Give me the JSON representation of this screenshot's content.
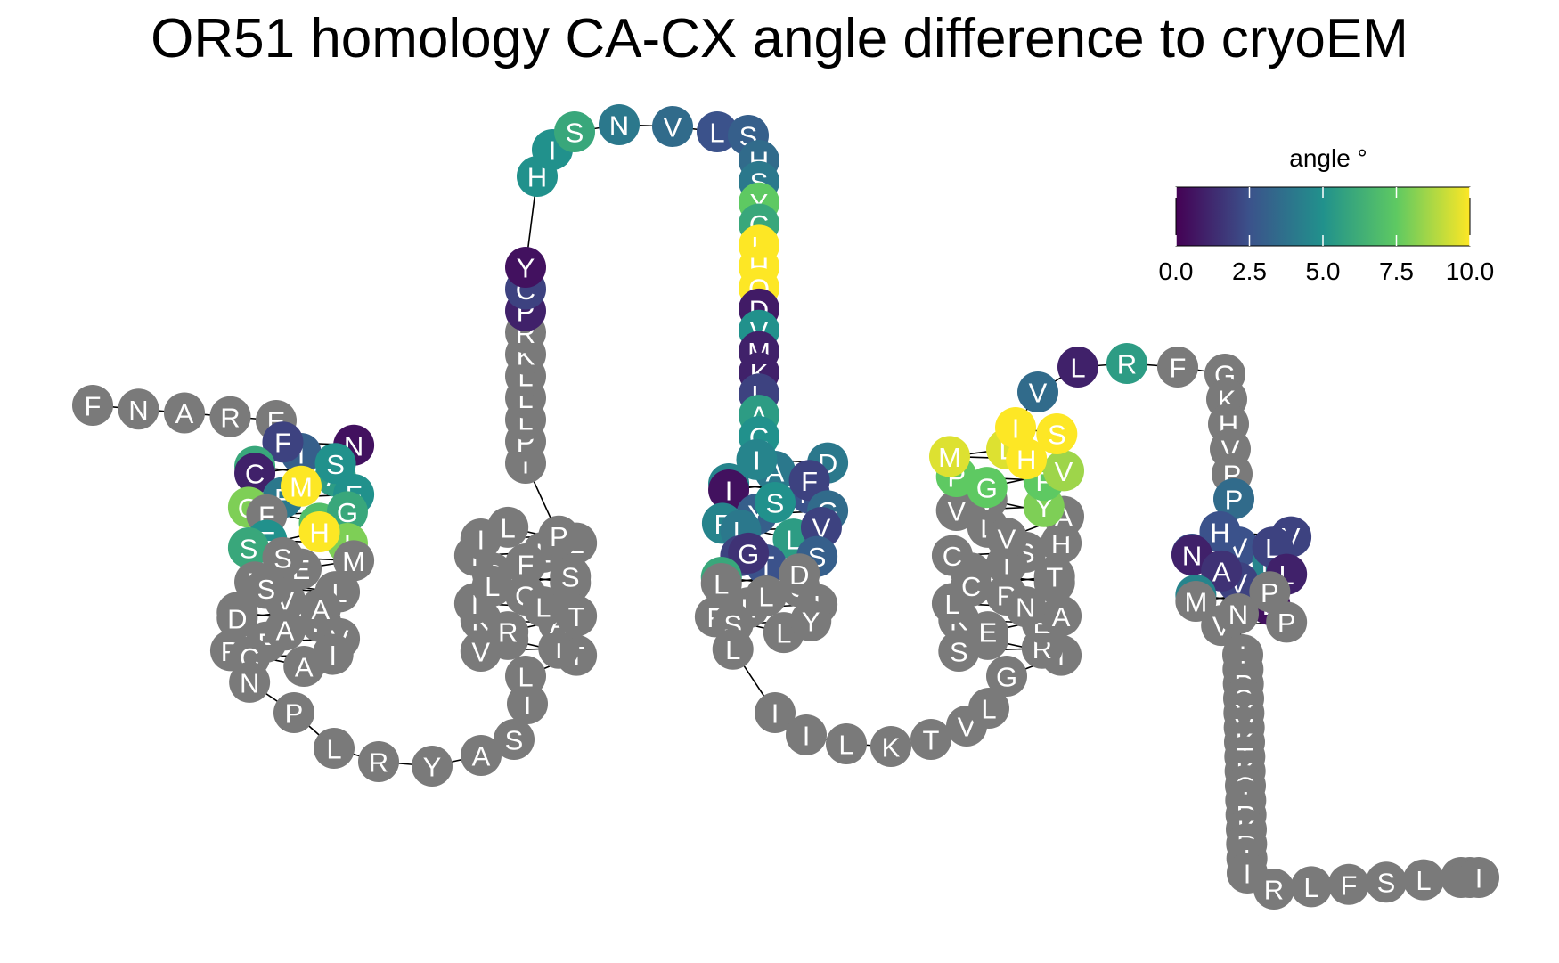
{
  "title": "OR51 homology CA-CX angle difference to cryoEM",
  "legend": {
    "title": "angle °",
    "ticks": [
      "0.0",
      "2.5",
      "5.0",
      "7.5",
      "10.0"
    ],
    "range": [
      0,
      10
    ],
    "colors": [
      "#440154",
      "#3b528b",
      "#21918c",
      "#5ec962",
      "#fde725"
    ]
  },
  "no_data_color": "#7a7a7a",
  "chart_data": {
    "type": "snake_plot",
    "color_scale": "viridis",
    "value_label": "angle °",
    "vmin": 0,
    "vmax": 10,
    "residues": [
      {
        "aa": "F",
        "v": null
      },
      {
        "aa": "N",
        "v": null
      },
      {
        "aa": "A",
        "v": null
      },
      {
        "aa": "R",
        "v": null
      },
      {
        "aa": "E",
        "v": null
      },
      {
        "aa": "I",
        "v": 3.0
      },
      {
        "aa": "N",
        "v": 0.5
      },
      {
        "aa": "F",
        "v": 2.0
      },
      {
        "aa": "A",
        "v": 6.0
      },
      {
        "aa": "A",
        "v": 5.5
      },
      {
        "aa": "S",
        "v": 5.0
      },
      {
        "aa": "C",
        "v": 1.0
      },
      {
        "aa": "F",
        "v": 4.0
      },
      {
        "aa": "F",
        "v": 5.0
      },
      {
        "aa": "M",
        "v": 10.0
      },
      {
        "aa": "Q",
        "v": 8.0
      },
      {
        "aa": "F",
        "v": 7.0
      },
      {
        "aa": "G",
        "v": 6.0
      },
      {
        "aa": "F",
        "v": null
      },
      {
        "aa": "F",
        "v": 5.0
      },
      {
        "aa": "I",
        "v": 8.0
      },
      {
        "aa": "H",
        "v": 10.0
      },
      {
        "aa": "S",
        "v": 6.0
      },
      {
        "aa": "E",
        "v": null
      },
      {
        "aa": "M",
        "v": null
      },
      {
        "aa": "S",
        "v": null
      },
      {
        "aa": "L",
        "v": null
      },
      {
        "aa": "A",
        "v": null
      },
      {
        "aa": "V",
        "v": null
      },
      {
        "aa": "L",
        "v": null
      },
      {
        "aa": "S",
        "v": null
      },
      {
        "aa": "M",
        "v": null
      },
      {
        "aa": "F",
        "v": null
      },
      {
        "aa": "A",
        "v": null
      },
      {
        "aa": "D",
        "v": null
      },
      {
        "aa": "F",
        "v": null
      },
      {
        "aa": "V",
        "v": null
      },
      {
        "aa": "A",
        "v": null
      },
      {
        "aa": "R",
        "v": null
      },
      {
        "aa": "A",
        "v": null
      },
      {
        "aa": "I",
        "v": null
      },
      {
        "aa": "C",
        "v": null
      },
      {
        "aa": "N",
        "v": null
      },
      {
        "aa": "P",
        "v": null
      },
      {
        "aa": "L",
        "v": null
      },
      {
        "aa": "R",
        "v": null
      },
      {
        "aa": "Y",
        "v": null
      },
      {
        "aa": "A",
        "v": null
      },
      {
        "aa": "S",
        "v": null
      },
      {
        "aa": "I",
        "v": null
      },
      {
        "aa": "L",
        "v": null
      },
      {
        "aa": "T",
        "v": null
      },
      {
        "aa": "N",
        "v": null
      },
      {
        "aa": "V",
        "v": null
      },
      {
        "aa": "I",
        "v": null
      },
      {
        "aa": "A",
        "v": null
      },
      {
        "aa": "K",
        "v": null
      },
      {
        "aa": "R",
        "v": null
      },
      {
        "aa": "T",
        "v": null
      },
      {
        "aa": "G",
        "v": null
      },
      {
        "aa": "I",
        "v": null
      },
      {
        "aa": "L",
        "v": null
      },
      {
        "aa": "A",
        "v": null
      },
      {
        "aa": "R",
        "v": null
      },
      {
        "aa": "L",
        "v": null
      },
      {
        "aa": "S",
        "v": null
      },
      {
        "aa": "L",
        "v": null
      },
      {
        "aa": "T",
        "v": null
      },
      {
        "aa": "F",
        "v": null
      },
      {
        "aa": "L",
        "v": null
      },
      {
        "aa": "L",
        "v": null
      },
      {
        "aa": "I",
        "v": null
      },
      {
        "aa": "P",
        "v": null
      },
      {
        "aa": "I",
        "v": null
      },
      {
        "aa": "P",
        "v": null
      },
      {
        "aa": "L",
        "v": null
      },
      {
        "aa": "L",
        "v": null
      },
      {
        "aa": "L",
        "v": null
      },
      {
        "aa": "K",
        "v": null
      },
      {
        "aa": "R",
        "v": null
      },
      {
        "aa": "P",
        "v": 1.0
      },
      {
        "aa": "C",
        "v": 2.0
      },
      {
        "aa": "Y",
        "v": 0.5
      },
      {
        "aa": "H",
        "v": 5.0
      },
      {
        "aa": "I",
        "v": 5.0
      },
      {
        "aa": "S",
        "v": 6.0
      },
      {
        "aa": "N",
        "v": 4.0
      },
      {
        "aa": "V",
        "v": 3.5
      },
      {
        "aa": "L",
        "v": 2.5
      },
      {
        "aa": "S",
        "v": 3.0
      },
      {
        "aa": "H",
        "v": 3.5
      },
      {
        "aa": "S",
        "v": 4.0
      },
      {
        "aa": "Y",
        "v": 7.5
      },
      {
        "aa": "C",
        "v": 6.0
      },
      {
        "aa": "L",
        "v": 10.0
      },
      {
        "aa": "H",
        "v": 10.0
      },
      {
        "aa": "Q",
        "v": 10.0
      },
      {
        "aa": "D",
        "v": 0.8
      },
      {
        "aa": "V",
        "v": 5.0
      },
      {
        "aa": "M",
        "v": 1.0
      },
      {
        "aa": "K",
        "v": 1.0
      },
      {
        "aa": "L",
        "v": 2.0
      },
      {
        "aa": "A",
        "v": 5.5
      },
      {
        "aa": "C",
        "v": 5.0
      },
      {
        "aa": "A",
        "v": 4.0
      },
      {
        "aa": "D",
        "v": 4.0
      },
      {
        "aa": "I",
        "v": 4.5
      },
      {
        "aa": "R",
        "v": 4.5
      },
      {
        "aa": "N",
        "v": 2.5
      },
      {
        "aa": "F",
        "v": 2.0
      },
      {
        "aa": "I",
        "v": 0.5
      },
      {
        "aa": "Y",
        "v": 3.0
      },
      {
        "aa": "G",
        "v": 3.5
      },
      {
        "aa": "S",
        "v": 5.0
      },
      {
        "aa": "F",
        "v": 4.5
      },
      {
        "aa": "L",
        "v": 5.5
      },
      {
        "aa": "V",
        "v": 2.0
      },
      {
        "aa": "L",
        "v": 4.0
      },
      {
        "aa": "V",
        "v": 2.0
      },
      {
        "aa": "T",
        "v": 2.5
      },
      {
        "aa": "S",
        "v": 3.0
      },
      {
        "aa": "G",
        "v": 1.5
      },
      {
        "aa": "M",
        "v": 6.0
      },
      {
        "aa": "S",
        "v": null
      },
      {
        "aa": "D",
        "v": null
      },
      {
        "aa": "L",
        "v": null
      },
      {
        "aa": "L",
        "v": null
      },
      {
        "aa": "I",
        "v": null
      },
      {
        "aa": "L",
        "v": null
      },
      {
        "aa": "F",
        "v": null
      },
      {
        "aa": "L",
        "v": null
      },
      {
        "aa": "Y",
        "v": null
      },
      {
        "aa": "S",
        "v": null
      },
      {
        "aa": "L",
        "v": null
      },
      {
        "aa": "I",
        "v": null
      },
      {
        "aa": "I",
        "v": null
      },
      {
        "aa": "L",
        "v": null
      },
      {
        "aa": "K",
        "v": null
      },
      {
        "aa": "T",
        "v": null
      },
      {
        "aa": "V",
        "v": null
      },
      {
        "aa": "L",
        "v": null
      },
      {
        "aa": "G",
        "v": null
      },
      {
        "aa": "I",
        "v": null
      },
      {
        "aa": "A",
        "v": null
      },
      {
        "aa": "S",
        "v": null
      },
      {
        "aa": "R",
        "v": null
      },
      {
        "aa": "E",
        "v": null
      },
      {
        "aa": "K",
        "v": null
      },
      {
        "aa": "E",
        "v": null
      },
      {
        "aa": "A",
        "v": null
      },
      {
        "aa": "R",
        "v": null
      },
      {
        "aa": "L",
        "v": null
      },
      {
        "aa": "N",
        "v": null
      },
      {
        "aa": "V",
        "v": null
      },
      {
        "aa": "L",
        "v": null
      },
      {
        "aa": "C",
        "v": null
      },
      {
        "aa": "T",
        "v": null
      },
      {
        "aa": "S",
        "v": null
      },
      {
        "aa": "C",
        "v": null
      },
      {
        "aa": "I",
        "v": null
      },
      {
        "aa": "H",
        "v": null
      },
      {
        "aa": "L",
        "v": null
      },
      {
        "aa": "V",
        "v": null
      },
      {
        "aa": "A",
        "v": null
      },
      {
        "aa": "V",
        "v": null
      },
      {
        "aa": "V",
        "v": null
      },
      {
        "aa": "Y",
        "v": 8.0
      },
      {
        "aa": "F",
        "v": 7.5
      },
      {
        "aa": "P",
        "v": 7.5
      },
      {
        "aa": "G",
        "v": 7.5
      },
      {
        "aa": "V",
        "v": 8.5
      },
      {
        "aa": "L",
        "v": 9.5
      },
      {
        "aa": "M",
        "v": 9.5
      },
      {
        "aa": "H",
        "v": 10.0
      },
      {
        "aa": "S",
        "v": 10.0
      },
      {
        "aa": "I",
        "v": 10.0
      },
      {
        "aa": "V",
        "v": 3.5
      },
      {
        "aa": "L",
        "v": 1.0
      },
      {
        "aa": "R",
        "v": 5.5
      },
      {
        "aa": "F",
        "v": null
      },
      {
        "aa": "G",
        "v": null
      },
      {
        "aa": "K",
        "v": null
      },
      {
        "aa": "H",
        "v": null
      },
      {
        "aa": "V",
        "v": null
      },
      {
        "aa": "P",
        "v": null
      },
      {
        "aa": "P",
        "v": 3.5
      },
      {
        "aa": "V",
        "v": 2.5
      },
      {
        "aa": "V",
        "v": 2.0
      },
      {
        "aa": "H",
        "v": 2.5
      },
      {
        "aa": "V",
        "v": 2.5
      },
      {
        "aa": "M",
        "v": 4.5
      },
      {
        "aa": "L",
        "v": 2.0
      },
      {
        "aa": "N",
        "v": 1.0
      },
      {
        "aa": "V",
        "v": 2.0
      },
      {
        "aa": "L",
        "v": 1.0
      },
      {
        "aa": "A",
        "v": 1.5
      },
      {
        "aa": "Y",
        "v": 4.5
      },
      {
        "aa": "L",
        "v": 0.5
      },
      {
        "aa": "P",
        "v": null
      },
      {
        "aa": "M",
        "v": null
      },
      {
        "aa": "V",
        "v": null
      },
      {
        "aa": "P",
        "v": null
      },
      {
        "aa": "N",
        "v": null
      },
      {
        "aa": "I",
        "v": null
      },
      {
        "aa": "I",
        "v": null
      },
      {
        "aa": "P",
        "v": null
      },
      {
        "aa": "S",
        "v": null
      },
      {
        "aa": "Y",
        "v": null
      },
      {
        "aa": "V",
        "v": null
      },
      {
        "aa": "K",
        "v": null
      },
      {
        "aa": "T",
        "v": null
      },
      {
        "aa": "K",
        "v": null
      },
      {
        "aa": "Q",
        "v": null
      },
      {
        "aa": "I",
        "v": null
      },
      {
        "aa": "R",
        "v": null
      },
      {
        "aa": "K",
        "v": null
      },
      {
        "aa": "R",
        "v": null
      },
      {
        "aa": "I",
        "v": null
      },
      {
        "aa": "I",
        "v": null
      },
      {
        "aa": "R",
        "v": null
      },
      {
        "aa": "L",
        "v": null
      },
      {
        "aa": "F",
        "v": null
      },
      {
        "aa": "S",
        "v": null
      },
      {
        "aa": "L",
        "v": null
      },
      {
        "aa": "K",
        "v": null
      },
      {
        "aa": "K",
        "v": null
      },
      {
        "aa": "I",
        "v": null
      }
    ]
  }
}
